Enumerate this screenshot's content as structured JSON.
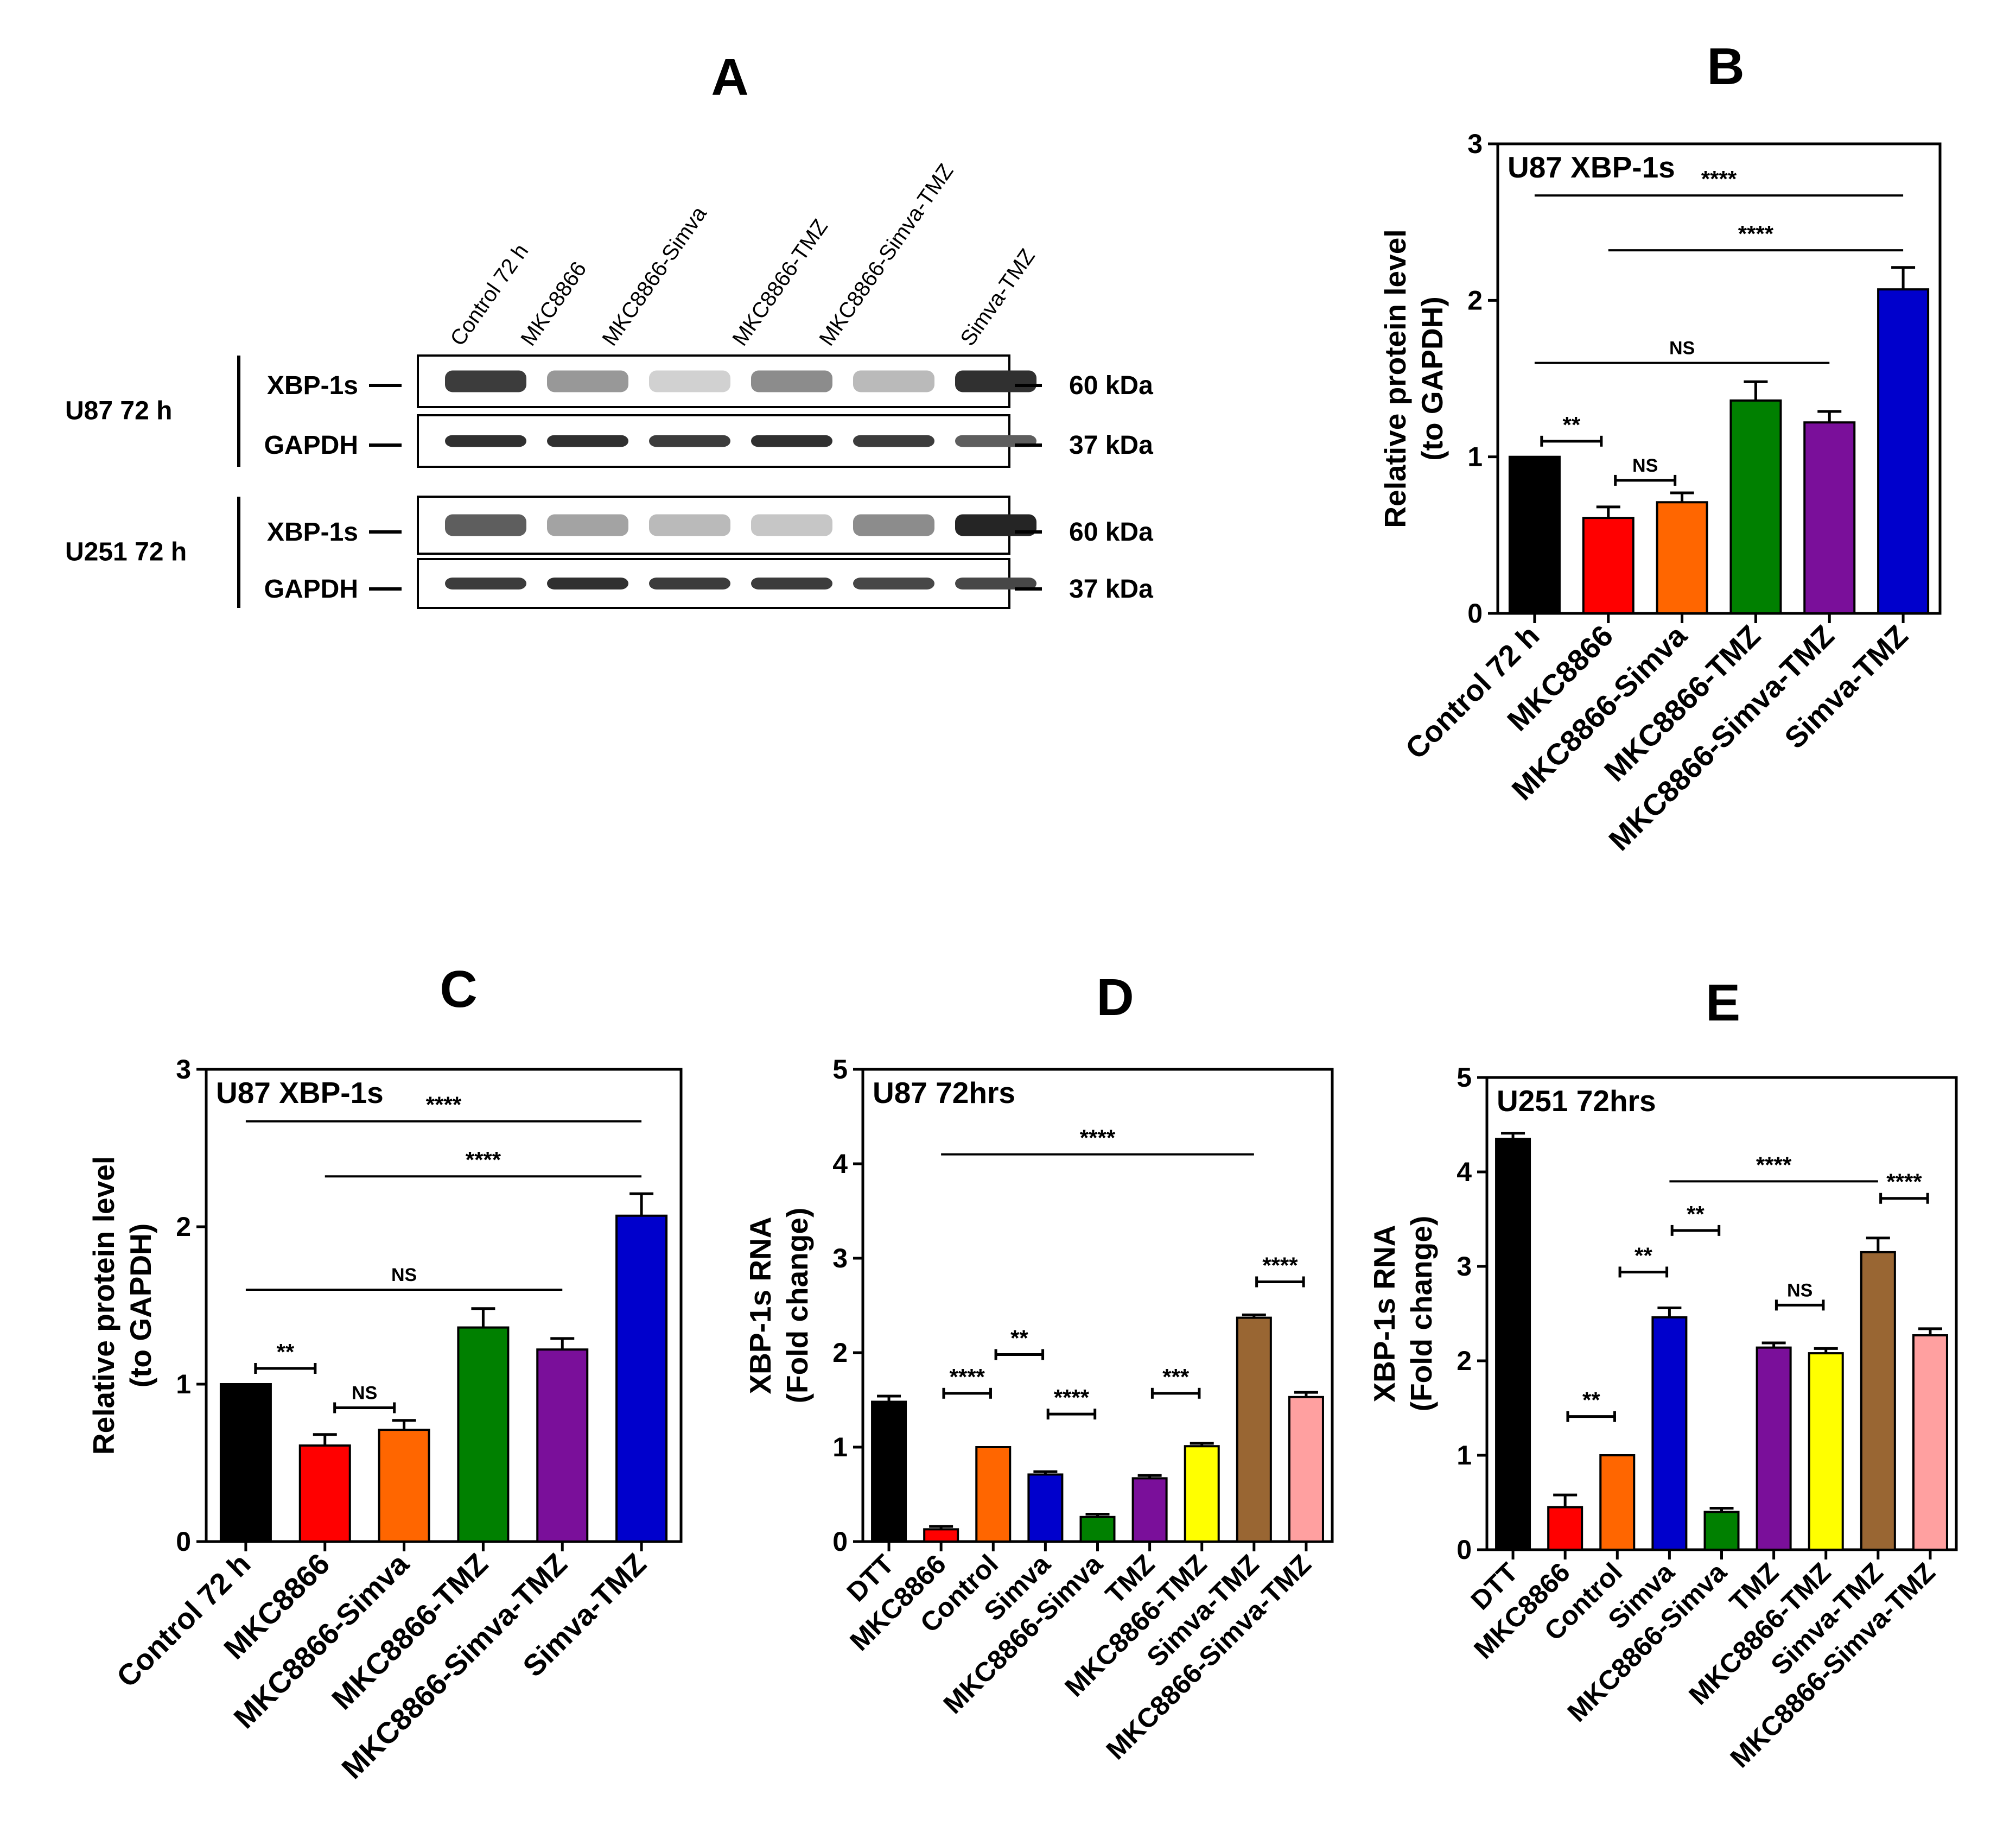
{
  "panels": {
    "A": {
      "letter": "A"
    },
    "B": {
      "letter": "B"
    },
    "C": {
      "letter": "C"
    },
    "D": {
      "letter": "D"
    },
    "E": {
      "letter": "E"
    }
  },
  "blot": {
    "lanes": [
      "Control 72 h",
      "MKC8866",
      "MKC8866-Simva",
      "MKC8866-TMZ",
      "MKC8866-Simva-TMZ",
      "Simva-TMZ"
    ],
    "groups": [
      {
        "label": "U87 72 h",
        "rows": [
          {
            "protein": "XBP-1s",
            "kda": "60 kDa",
            "intensities": [
              0.85,
              0.45,
              0.2,
              0.5,
              0.3,
              0.9
            ]
          },
          {
            "protein": "GAPDH",
            "kda": "37 kDa",
            "intensities": [
              0.9,
              0.9,
              0.85,
              0.9,
              0.85,
              0.7
            ]
          }
        ]
      },
      {
        "label": "U251 72 h",
        "rows": [
          {
            "protein": "XBP-1s",
            "kda": "60 kDa",
            "intensities": [
              0.7,
              0.4,
              0.3,
              0.25,
              0.5,
              0.95
            ]
          },
          {
            "protein": "GAPDH",
            "kda": "37 kDa",
            "intensities": [
              0.85,
              0.9,
              0.85,
              0.85,
              0.8,
              0.8
            ]
          }
        ]
      }
    ]
  },
  "chart_data": [
    {
      "panel": "B",
      "type": "bar",
      "title": "U87 XBP-1s",
      "ylabel": [
        "Relative protein level",
        "(to GAPDH)"
      ],
      "xlabel": "",
      "ylim": [
        0,
        3
      ],
      "yticks": [
        0,
        1,
        2,
        3
      ],
      "categories": [
        "Control 72 h",
        "MKC8866",
        "MKC8866-Simva",
        "MKC8866-TMZ",
        "MKC8866-Simva-TMZ",
        "Simva-TMZ"
      ],
      "values": [
        1.0,
        0.61,
        0.71,
        1.36,
        1.22,
        2.07
      ],
      "errors": [
        0.0,
        0.07,
        0.06,
        0.12,
        0.07,
        0.14
      ],
      "colors": [
        "#000000",
        "#ff0000",
        "#ff6600",
        "#008000",
        "#7a0f9a",
        "#0000cc"
      ],
      "annotations": [
        {
          "label": "****",
          "from": 0,
          "to": 5,
          "y": 2.67,
          "style": "line"
        },
        {
          "label": "****",
          "from": 1,
          "to": 5,
          "y": 2.32,
          "style": "line"
        },
        {
          "label": "NS",
          "from": 0,
          "to": 4,
          "y": 1.6,
          "style": "line"
        },
        {
          "label": "**",
          "from": 0,
          "to": 1,
          "y": 1.1,
          "style": "bracket"
        },
        {
          "label": "NS",
          "from": 1,
          "to": 2,
          "y": 0.85,
          "style": "bracket"
        }
      ]
    },
    {
      "panel": "C",
      "type": "bar",
      "title": "U87 XBP-1s",
      "ylabel": [
        "Relative protein level",
        "(to GAPDH)"
      ],
      "xlabel": "",
      "ylim": [
        0,
        3
      ],
      "yticks": [
        0,
        1,
        2,
        3
      ],
      "categories": [
        "Control 72 h",
        "MKC8866",
        "MKC8866-Simva",
        "MKC8866-TMZ",
        "MKC8866-Simva-TMZ",
        "Simva-TMZ"
      ],
      "values": [
        1.0,
        0.61,
        0.71,
        1.36,
        1.22,
        2.07
      ],
      "errors": [
        0.0,
        0.07,
        0.06,
        0.12,
        0.07,
        0.14
      ],
      "colors": [
        "#000000",
        "#ff0000",
        "#ff6600",
        "#008000",
        "#7a0f9a",
        "#0000cc"
      ],
      "annotations": [
        {
          "label": "****",
          "from": 0,
          "to": 5,
          "y": 2.67,
          "style": "line"
        },
        {
          "label": "****",
          "from": 1,
          "to": 5,
          "y": 2.32,
          "style": "line"
        },
        {
          "label": "NS",
          "from": 0,
          "to": 4,
          "y": 1.6,
          "style": "line"
        },
        {
          "label": "**",
          "from": 0,
          "to": 1,
          "y": 1.1,
          "style": "bracket"
        },
        {
          "label": "NS",
          "from": 1,
          "to": 2,
          "y": 0.85,
          "style": "bracket"
        }
      ]
    },
    {
      "panel": "D",
      "type": "bar",
      "title": "U87 72hrs",
      "ylabel": [
        "XBP-1s  RNA",
        "(Fold change)"
      ],
      "xlabel": "",
      "ylim": [
        0,
        5
      ],
      "yticks": [
        0,
        1,
        2,
        3,
        4,
        5
      ],
      "categories": [
        "DTT",
        "MKC8866",
        "Control",
        "Simva",
        "MKC8866-Simva",
        "TMZ",
        "MKC8866-TMZ",
        "Simva-TMZ",
        "MKC8866-Simva-TMZ"
      ],
      "values": [
        1.48,
        0.13,
        1.0,
        0.71,
        0.26,
        0.67,
        1.01,
        2.37,
        1.53
      ],
      "errors": [
        0.06,
        0.03,
        0.0,
        0.03,
        0.03,
        0.03,
        0.03,
        0.03,
        0.05
      ],
      "colors": [
        "#000000",
        "#ff0000",
        "#ff6600",
        "#0000cc",
        "#008000",
        "#7a0f9a",
        "#ffff00",
        "#996633",
        "#ffa0a0"
      ],
      "annotations": [
        {
          "label": "****",
          "from": 1,
          "to": 7,
          "y": 4.1,
          "style": "line"
        },
        {
          "label": "****",
          "from": 1,
          "to": 2,
          "y": 1.57,
          "style": "bracket"
        },
        {
          "label": "**",
          "from": 2,
          "to": 3,
          "y": 1.98,
          "style": "bracket"
        },
        {
          "label": "****",
          "from": 3,
          "to": 4,
          "y": 1.35,
          "style": "bracket"
        },
        {
          "label": "***",
          "from": 5,
          "to": 6,
          "y": 1.57,
          "style": "bracket"
        },
        {
          "label": "****",
          "from": 7,
          "to": 8,
          "y": 2.75,
          "style": "bracket"
        }
      ]
    },
    {
      "panel": "E",
      "type": "bar",
      "title": "U251 72hrs",
      "ylabel": [
        "XBP-1s  RNA",
        "(Fold change)"
      ],
      "xlabel": "",
      "ylim": [
        0,
        5
      ],
      "yticks": [
        0,
        1,
        2,
        3,
        4,
        5
      ],
      "categories": [
        "DTT",
        "MKC8866",
        "Control",
        "Simva",
        "MKC8866-Simva",
        "TMZ",
        "MKC8866-TMZ",
        "Simva-TMZ",
        "MKC8866-Simva-TMZ"
      ],
      "values": [
        4.35,
        0.45,
        1.0,
        2.46,
        0.4,
        2.14,
        2.08,
        3.15,
        2.27
      ],
      "errors": [
        0.06,
        0.13,
        0.0,
        0.1,
        0.04,
        0.05,
        0.05,
        0.15,
        0.07
      ],
      "colors": [
        "#000000",
        "#ff0000",
        "#ff6600",
        "#0000cc",
        "#008000",
        "#7a0f9a",
        "#ffff00",
        "#996633",
        "#ffa0a0"
      ],
      "annotations": [
        {
          "label": "****",
          "from": 3,
          "to": 7,
          "y": 3.9,
          "style": "line"
        },
        {
          "label": "**",
          "from": 1,
          "to": 2,
          "y": 1.41,
          "style": "bracket"
        },
        {
          "label": "**",
          "from": 2,
          "to": 3,
          "y": 2.94,
          "style": "bracket"
        },
        {
          "label": "**",
          "from": 3,
          "to": 4,
          "y": 3.38,
          "style": "bracket"
        },
        {
          "label": "NS",
          "from": 5,
          "to": 6,
          "y": 2.59,
          "style": "bracket"
        },
        {
          "label": "****",
          "from": 7,
          "to": 8,
          "y": 3.72,
          "style": "bracket"
        }
      ]
    }
  ]
}
